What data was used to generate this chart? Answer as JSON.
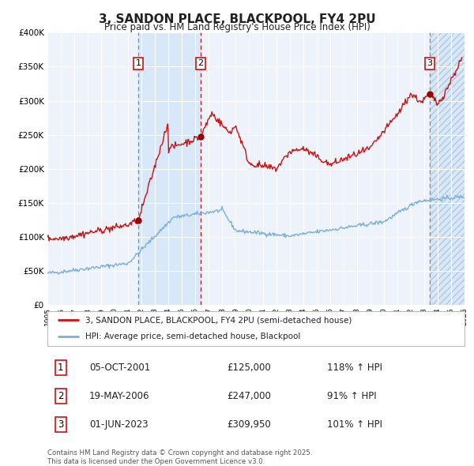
{
  "title": "3, SANDON PLACE, BLACKPOOL, FY4 2PU",
  "subtitle": "Price paid vs. HM Land Registry's House Price Index (HPI)",
  "background_color": "#ffffff",
  "plot_bg_color": "#eef2fa",
  "grid_color": "#ffffff",
  "sale1": {
    "date_num": 2001.77,
    "price": 125000,
    "label": "1",
    "date_str": "05-OCT-2001",
    "pct": "118% ↑ HPI"
  },
  "sale2": {
    "date_num": 2006.37,
    "price": 247000,
    "label": "2",
    "date_str": "19-MAY-2006",
    "pct": "91% ↑ HPI"
  },
  "sale3": {
    "date_num": 2023.42,
    "price": 309950,
    "label": "3",
    "date_str": "01-JUN-2023",
    "pct": "101% ↑ HPI"
  },
  "legend_label_red": "3, SANDON PLACE, BLACKPOOL, FY4 2PU (semi-detached house)",
  "legend_label_blue": "HPI: Average price, semi-detached house, Blackpool",
  "footer": "Contains HM Land Registry data © Crown copyright and database right 2025.\nThis data is licensed under the Open Government Licence v3.0.",
  "xmin": 1995,
  "xmax": 2026,
  "ymin": 0,
  "ymax": 400000,
  "yticks": [
    0,
    50000,
    100000,
    150000,
    200000,
    250000,
    300000,
    350000,
    400000
  ],
  "shade_color": "#d8e8f8",
  "hatch_color": "#b0c8e0"
}
